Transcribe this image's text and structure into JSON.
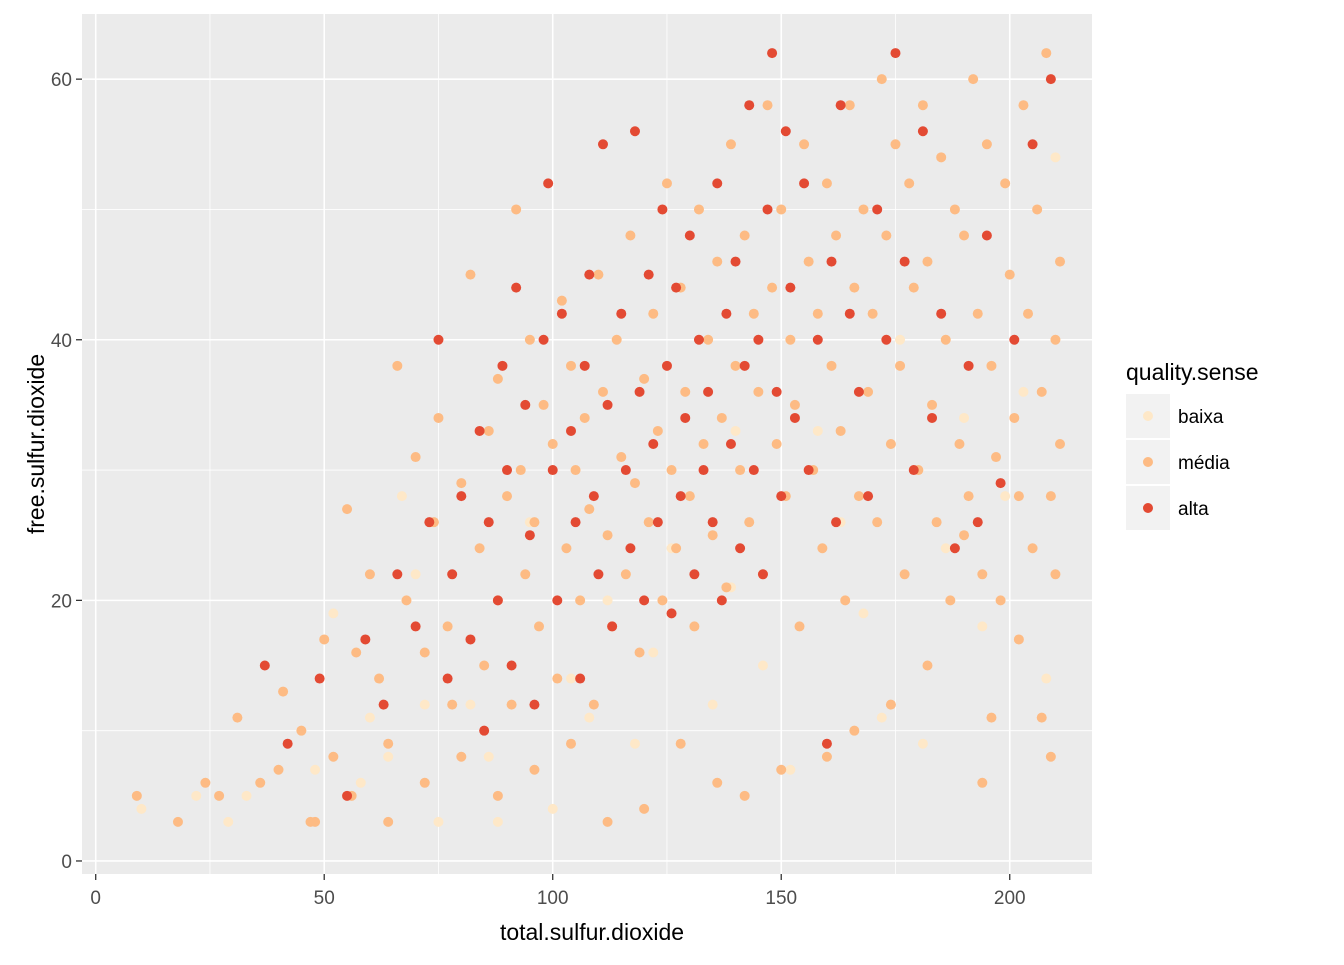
{
  "chart_data": {
    "type": "scatter",
    "xlabel": "total.sulfur.dioxide",
    "ylabel": "free.sulfur.dioxide",
    "xlim": [
      -3,
      218
    ],
    "ylim": [
      -1,
      65
    ],
    "x_ticks": [
      0,
      50,
      100,
      150,
      200
    ],
    "y_ticks": [
      0,
      20,
      40,
      60
    ],
    "x_tick_labels": [
      "0",
      "50",
      "100",
      "150",
      "200"
    ],
    "y_tick_labels": [
      "0",
      "20",
      "40",
      "60"
    ],
    "grid": true,
    "legend": {
      "title": "quality.sense",
      "position": "right"
    },
    "series": [
      {
        "name": "baixa",
        "color": "#fee8c8",
        "points": [
          [
            10,
            4
          ],
          [
            22,
            5
          ],
          [
            29,
            3
          ],
          [
            33,
            5
          ],
          [
            48,
            7
          ],
          [
            52,
            19
          ],
          [
            58,
            6
          ],
          [
            64,
            8
          ],
          [
            67,
            28
          ],
          [
            70,
            22
          ],
          [
            75,
            3
          ],
          [
            82,
            12
          ],
          [
            88,
            3
          ],
          [
            95,
            26
          ],
          [
            100,
            4
          ],
          [
            104,
            14
          ],
          [
            112,
            20
          ],
          [
            118,
            9
          ],
          [
            122,
            16
          ],
          [
            126,
            24
          ],
          [
            131,
            18
          ],
          [
            135,
            12
          ],
          [
            139,
            21
          ],
          [
            146,
            15
          ],
          [
            152,
            7
          ],
          [
            158,
            33
          ],
          [
            163,
            26
          ],
          [
            168,
            19
          ],
          [
            172,
            11
          ],
          [
            176,
            40
          ],
          [
            181,
            9
          ],
          [
            186,
            24
          ],
          [
            190,
            34
          ],
          [
            194,
            18
          ],
          [
            199,
            28
          ],
          [
            203,
            36
          ],
          [
            208,
            14
          ],
          [
            210,
            54
          ],
          [
            60,
            11
          ],
          [
            72,
            12
          ],
          [
            86,
            8
          ],
          [
            108,
            11
          ],
          [
            116,
            22
          ],
          [
            140,
            33
          ]
        ]
      },
      {
        "name": "média",
        "color": "#fdbb84",
        "points": [
          [
            9,
            5
          ],
          [
            18,
            3
          ],
          [
            24,
            6
          ],
          [
            27,
            5
          ],
          [
            31,
            11
          ],
          [
            36,
            6
          ],
          [
            41,
            13
          ],
          [
            45,
            10
          ],
          [
            47,
            3
          ],
          [
            50,
            17
          ],
          [
            52,
            8
          ],
          [
            55,
            27
          ],
          [
            57,
            16
          ],
          [
            60,
            22
          ],
          [
            62,
            14
          ],
          [
            64,
            9
          ],
          [
            66,
            38
          ],
          [
            68,
            20
          ],
          [
            70,
            31
          ],
          [
            72,
            16
          ],
          [
            74,
            26
          ],
          [
            75,
            34
          ],
          [
            77,
            18
          ],
          [
            78,
            12
          ],
          [
            80,
            29
          ],
          [
            82,
            45
          ],
          [
            84,
            24
          ],
          [
            85,
            15
          ],
          [
            86,
            33
          ],
          [
            88,
            20
          ],
          [
            88,
            37
          ],
          [
            90,
            28
          ],
          [
            91,
            12
          ],
          [
            92,
            50
          ],
          [
            93,
            30
          ],
          [
            94,
            22
          ],
          [
            95,
            40
          ],
          [
            96,
            26
          ],
          [
            97,
            18
          ],
          [
            98,
            35
          ],
          [
            100,
            32
          ],
          [
            101,
            14
          ],
          [
            102,
            43
          ],
          [
            103,
            24
          ],
          [
            104,
            38
          ],
          [
            105,
            30
          ],
          [
            106,
            20
          ],
          [
            107,
            34
          ],
          [
            108,
            27
          ],
          [
            109,
            12
          ],
          [
            110,
            45
          ],
          [
            111,
            36
          ],
          [
            112,
            25
          ],
          [
            113,
            18
          ],
          [
            114,
            40
          ],
          [
            115,
            31
          ],
          [
            116,
            22
          ],
          [
            117,
            48
          ],
          [
            118,
            29
          ],
          [
            119,
            16
          ],
          [
            120,
            37
          ],
          [
            121,
            26
          ],
          [
            122,
            42
          ],
          [
            123,
            33
          ],
          [
            124,
            20
          ],
          [
            125,
            52
          ],
          [
            126,
            30
          ],
          [
            127,
            24
          ],
          [
            128,
            44
          ],
          [
            129,
            36
          ],
          [
            130,
            28
          ],
          [
            131,
            18
          ],
          [
            132,
            50
          ],
          [
            133,
            32
          ],
          [
            134,
            40
          ],
          [
            135,
            25
          ],
          [
            136,
            46
          ],
          [
            137,
            34
          ],
          [
            138,
            21
          ],
          [
            139,
            55
          ],
          [
            140,
            38
          ],
          [
            141,
            30
          ],
          [
            142,
            48
          ],
          [
            143,
            26
          ],
          [
            144,
            42
          ],
          [
            145,
            36
          ],
          [
            146,
            22
          ],
          [
            147,
            58
          ],
          [
            148,
            44
          ],
          [
            149,
            32
          ],
          [
            150,
            50
          ],
          [
            151,
            28
          ],
          [
            152,
            40
          ],
          [
            153,
            35
          ],
          [
            154,
            18
          ],
          [
            155,
            55
          ],
          [
            156,
            46
          ],
          [
            157,
            30
          ],
          [
            158,
            42
          ],
          [
            159,
            24
          ],
          [
            160,
            52
          ],
          [
            161,
            38
          ],
          [
            162,
            48
          ],
          [
            163,
            33
          ],
          [
            164,
            20
          ],
          [
            165,
            58
          ],
          [
            166,
            44
          ],
          [
            167,
            28
          ],
          [
            168,
            50
          ],
          [
            169,
            36
          ],
          [
            170,
            42
          ],
          [
            171,
            26
          ],
          [
            172,
            60
          ],
          [
            173,
            48
          ],
          [
            174,
            32
          ],
          [
            175,
            55
          ],
          [
            176,
            38
          ],
          [
            177,
            22
          ],
          [
            178,
            52
          ],
          [
            179,
            44
          ],
          [
            180,
            30
          ],
          [
            181,
            58
          ],
          [
            182,
            46
          ],
          [
            183,
            35
          ],
          [
            184,
            26
          ],
          [
            185,
            54
          ],
          [
            186,
            40
          ],
          [
            187,
            20
          ],
          [
            188,
            50
          ],
          [
            189,
            32
          ],
          [
            190,
            48
          ],
          [
            191,
            28
          ],
          [
            192,
            60
          ],
          [
            193,
            42
          ],
          [
            194,
            22
          ],
          [
            195,
            55
          ],
          [
            196,
            38
          ],
          [
            197,
            31
          ],
          [
            198,
            20
          ],
          [
            199,
            52
          ],
          [
            200,
            45
          ],
          [
            201,
            34
          ],
          [
            202,
            28
          ],
          [
            203,
            58
          ],
          [
            204,
            42
          ],
          [
            205,
            24
          ],
          [
            206,
            50
          ],
          [
            207,
            36
          ],
          [
            208,
            62
          ],
          [
            209,
            28
          ],
          [
            210,
            40
          ],
          [
            211,
            46
          ],
          [
            211,
            32
          ],
          [
            210,
            22
          ],
          [
            209,
            8
          ],
          [
            196,
            11
          ],
          [
            207,
            11
          ],
          [
            194,
            6
          ],
          [
            202,
            17
          ],
          [
            190,
            25
          ],
          [
            182,
            15
          ],
          [
            174,
            12
          ],
          [
            166,
            10
          ],
          [
            160,
            8
          ],
          [
            150,
            7
          ],
          [
            142,
            5
          ],
          [
            136,
            6
          ],
          [
            128,
            9
          ],
          [
            120,
            4
          ],
          [
            112,
            3
          ],
          [
            104,
            9
          ],
          [
            96,
            7
          ],
          [
            88,
            5
          ],
          [
            80,
            8
          ],
          [
            72,
            6
          ],
          [
            64,
            3
          ],
          [
            56,
            5
          ],
          [
            48,
            3
          ],
          [
            40,
            7
          ]
        ]
      },
      {
        "name": "alta",
        "color": "#e34a33",
        "points": [
          [
            37,
            15
          ],
          [
            42,
            9
          ],
          [
            49,
            14
          ],
          [
            55,
            5
          ],
          [
            59,
            17
          ],
          [
            63,
            12
          ],
          [
            66,
            22
          ],
          [
            70,
            18
          ],
          [
            73,
            26
          ],
          [
            75,
            40
          ],
          [
            77,
            14
          ],
          [
            78,
            22
          ],
          [
            80,
            28
          ],
          [
            82,
            17
          ],
          [
            84,
            33
          ],
          [
            85,
            10
          ],
          [
            86,
            26
          ],
          [
            88,
            20
          ],
          [
            89,
            38
          ],
          [
            90,
            30
          ],
          [
            91,
            15
          ],
          [
            92,
            44
          ],
          [
            94,
            35
          ],
          [
            95,
            25
          ],
          [
            96,
            12
          ],
          [
            98,
            40
          ],
          [
            99,
            52
          ],
          [
            100,
            30
          ],
          [
            101,
            20
          ],
          [
            102,
            42
          ],
          [
            104,
            33
          ],
          [
            105,
            26
          ],
          [
            106,
            14
          ],
          [
            107,
            38
          ],
          [
            108,
            45
          ],
          [
            109,
            28
          ],
          [
            110,
            22
          ],
          [
            111,
            55
          ],
          [
            112,
            35
          ],
          [
            113,
            18
          ],
          [
            115,
            42
          ],
          [
            116,
            30
          ],
          [
            117,
            24
          ],
          [
            118,
            56
          ],
          [
            119,
            36
          ],
          [
            120,
            20
          ],
          [
            121,
            45
          ],
          [
            122,
            32
          ],
          [
            123,
            26
          ],
          [
            124,
            50
          ],
          [
            125,
            38
          ],
          [
            126,
            19
          ],
          [
            127,
            44
          ],
          [
            128,
            28
          ],
          [
            129,
            34
          ],
          [
            130,
            48
          ],
          [
            131,
            22
          ],
          [
            132,
            40
          ],
          [
            133,
            30
          ],
          [
            134,
            36
          ],
          [
            135,
            26
          ],
          [
            136,
            52
          ],
          [
            137,
            20
          ],
          [
            138,
            42
          ],
          [
            139,
            32
          ],
          [
            140,
            46
          ],
          [
            141,
            24
          ],
          [
            142,
            38
          ],
          [
            143,
            58
          ],
          [
            144,
            30
          ],
          [
            145,
            40
          ],
          [
            146,
            22
          ],
          [
            147,
            50
          ],
          [
            148,
            62
          ],
          [
            149,
            36
          ],
          [
            150,
            28
          ],
          [
            151,
            56
          ],
          [
            152,
            44
          ],
          [
            153,
            34
          ],
          [
            155,
            52
          ],
          [
            156,
            30
          ],
          [
            158,
            40
          ],
          [
            160,
            9
          ],
          [
            161,
            46
          ],
          [
            162,
            26
          ],
          [
            163,
            58
          ],
          [
            165,
            42
          ],
          [
            167,
            36
          ],
          [
            169,
            28
          ],
          [
            171,
            50
          ],
          [
            173,
            40
          ],
          [
            175,
            62
          ],
          [
            177,
            46
          ],
          [
            179,
            30
          ],
          [
            181,
            56
          ],
          [
            183,
            34
          ],
          [
            185,
            42
          ],
          [
            188,
            24
          ],
          [
            191,
            38
          ],
          [
            193,
            26
          ],
          [
            195,
            48
          ],
          [
            198,
            29
          ],
          [
            201,
            40
          ],
          [
            205,
            55
          ],
          [
            209,
            60
          ]
        ]
      }
    ]
  }
}
